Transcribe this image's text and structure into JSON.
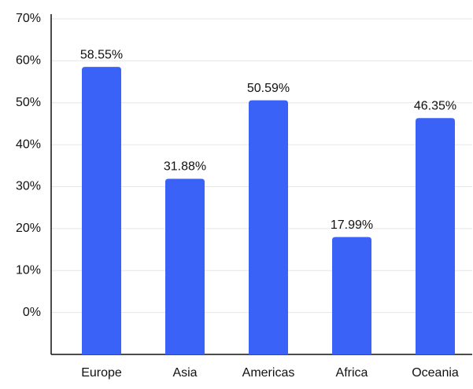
{
  "chart_data": {
    "type": "bar",
    "categories": [
      "Europe",
      "Asia",
      "Americas",
      "Africa",
      "Oceania"
    ],
    "values": [
      58.55,
      31.88,
      50.59,
      17.99,
      46.35
    ],
    "value_labels": [
      "58.55%",
      "31.88%",
      "50.59%",
      "17.99%",
      "46.35%"
    ],
    "color": "#3b62f6",
    "ylim": [
      -10,
      70
    ],
    "yticks": [
      {
        "value": 0,
        "label": "0%"
      },
      {
        "value": 10,
        "label": "10%"
      },
      {
        "value": 20,
        "label": "20%"
      },
      {
        "value": 30,
        "label": "30%"
      },
      {
        "value": 40,
        "label": "40%"
      },
      {
        "value": 50,
        "label": "50%"
      },
      {
        "value": 60,
        "label": "60%"
      },
      {
        "value": 70,
        "label": "70%"
      }
    ],
    "grid": true
  }
}
